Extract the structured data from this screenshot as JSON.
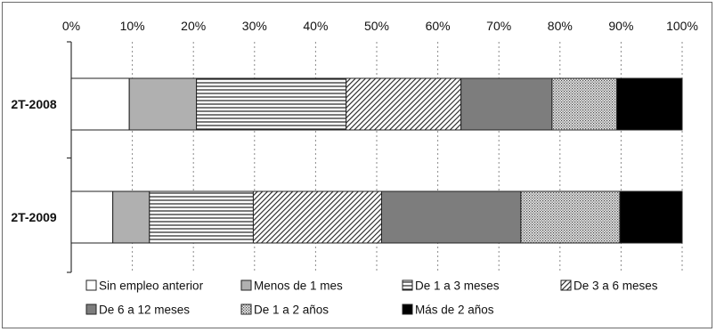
{
  "chart_data": {
    "type": "bar",
    "orientation": "horizontal",
    "stacked": true,
    "percent_stacked": true,
    "categories": [
      "2T-2008",
      "2T-2009"
    ],
    "xlim": [
      0,
      100
    ],
    "x_ticks": [
      "0%",
      "10%",
      "20%",
      "30%",
      "40%",
      "50%",
      "60%",
      "70%",
      "80%",
      "90%",
      "100%"
    ],
    "x_axis_position": "top",
    "grid": "vertical dotted",
    "legend_position": "bottom",
    "series": [
      {
        "name": "Sin empleo anterior",
        "values": [
          9.5,
          6.8
        ],
        "color": "#ffffff",
        "pattern": "none"
      },
      {
        "name": "Menos de 1 mes",
        "values": [
          11.0,
          6.0
        ],
        "color": "#b0b0b0",
        "pattern": "none"
      },
      {
        "name": "De 1 a 3 meses",
        "values": [
          24.5,
          17.0
        ],
        "color": "#ffffff",
        "pattern": "horizontal-lines"
      },
      {
        "name": "De 3 a 6 meses",
        "values": [
          18.8,
          21.0
        ],
        "color": "#ffffff",
        "pattern": "diagonal-dense"
      },
      {
        "name": "De 6 a 12 meses",
        "values": [
          14.9,
          22.8
        ],
        "color": "#7d7d7d",
        "pattern": "none"
      },
      {
        "name": "De 1 a 2 años",
        "values": [
          10.6,
          16.2
        ],
        "color": "#e6e6e6",
        "pattern": "dots"
      },
      {
        "name": "Más de 2 años",
        "values": [
          10.7,
          10.2
        ],
        "color": "#000000",
        "pattern": "none"
      }
    ]
  }
}
